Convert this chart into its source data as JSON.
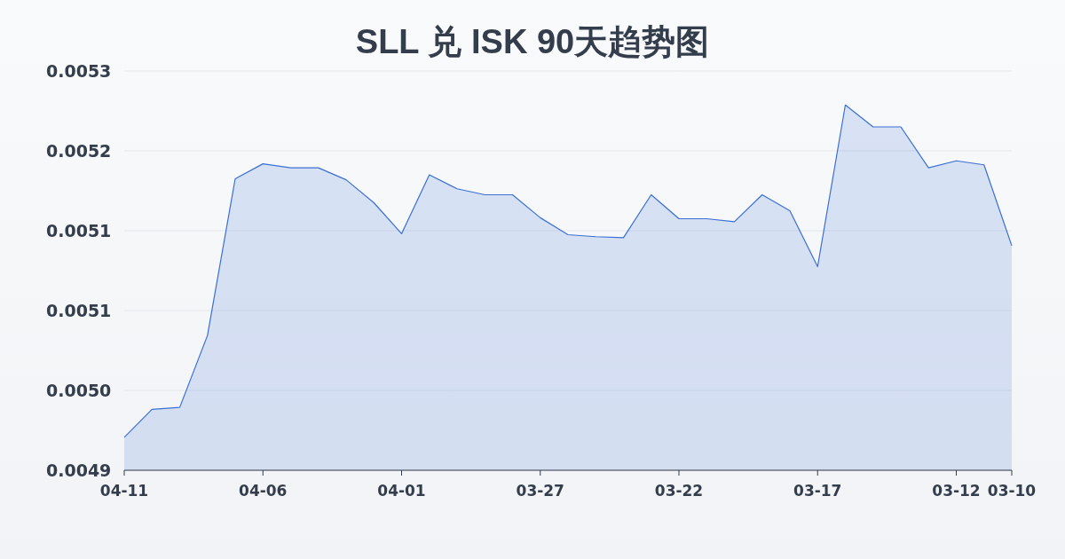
{
  "chart_data": {
    "type": "area",
    "title": "SLL 兑 ISK 90天趋势图",
    "categories": [
      "04-11",
      null,
      null,
      null,
      null,
      "04-06",
      null,
      null,
      null,
      null,
      "04-01",
      null,
      null,
      null,
      null,
      "03-27",
      null,
      null,
      null,
      null,
      "03-22",
      null,
      null,
      null,
      null,
      "03-17",
      null,
      null,
      null,
      null,
      "03-12",
      null,
      "03-10"
    ],
    "series": [
      {
        "color": "#3b6fd4",
        "values": [
          0.004933,
          0.004961,
          0.004963,
          0.005035,
          0.005192,
          0.005207,
          0.005203,
          0.005203,
          0.005191,
          0.005168,
          0.005137,
          0.005196,
          0.005182,
          0.005176,
          0.005176,
          0.005153,
          0.005136,
          0.005134,
          0.005133,
          0.005176,
          0.005152,
          0.005152,
          0.005149,
          0.005176,
          0.00516,
          0.005104,
          0.005266,
          0.005244,
          0.005244,
          0.005203,
          0.00521,
          0.005206,
          0.005125
        ]
      }
    ],
    "ylim": [
      0.0049,
      0.0053
    ],
    "yticks": [
      {
        "value": 0.0049,
        "label": "0.0049"
      },
      {
        "value": 0.00498,
        "label": "0.0050"
      },
      {
        "value": 0.00506,
        "label": "0.0051"
      },
      {
        "value": 0.00514,
        "label": "0.0051"
      },
      {
        "value": 0.00522,
        "label": "0.0052"
      },
      {
        "value": 0.0053,
        "label": "0.0053"
      }
    ],
    "grid": "y"
  }
}
